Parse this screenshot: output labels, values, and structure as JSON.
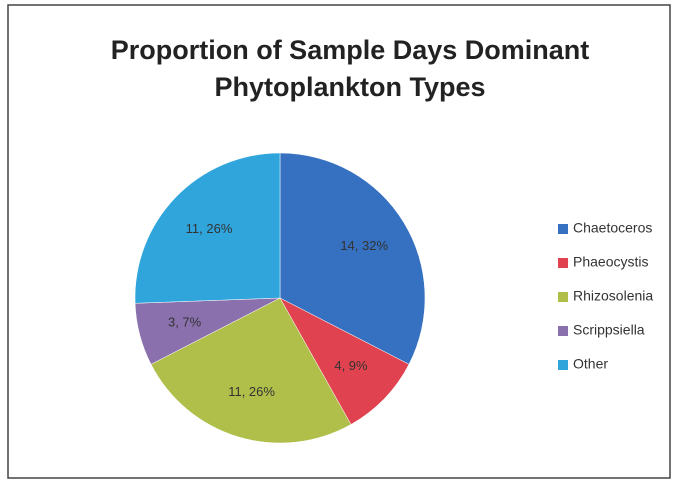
{
  "chart_data": {
    "type": "pie",
    "title": [
      "Proportion of Sample Days Dominant",
      "Phytoplankton Types"
    ],
    "categories": [
      "Chaetoceros",
      "Phaeocystis",
      "Rhizosolenia",
      "Scrippsiella",
      "Other"
    ],
    "values": [
      14,
      4,
      11,
      3,
      11
    ],
    "value_labels": [
      "14, 32%",
      "4, 9%",
      "11, 26%",
      "3, 7%",
      "11, 26%"
    ],
    "colors": [
      "#3571c0",
      "#e0434f",
      "#afbf4a",
      "#8a70ad",
      "#2fa5dc"
    ],
    "legend": "right"
  }
}
